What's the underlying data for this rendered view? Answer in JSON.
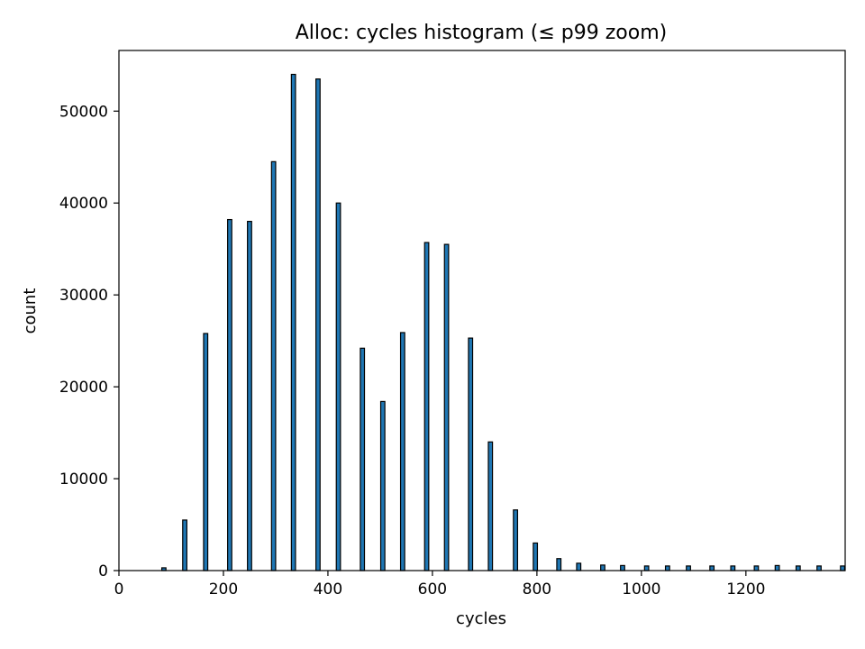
{
  "chart_data": {
    "type": "bar",
    "title": "Alloc: cycles histogram (≤ p99 zoom)",
    "xlabel": "cycles",
    "ylabel": "count",
    "xlim": [
      0,
      1390
    ],
    "ylim": [
      0,
      56600
    ],
    "xticks": [
      0,
      200,
      400,
      600,
      800,
      1000,
      1200
    ],
    "yticks": [
      0,
      10000,
      20000,
      30000,
      40000,
      50000
    ],
    "bar_color": "#1f77b4",
    "edge_color": "#000000",
    "grid": false,
    "x": [
      86,
      126,
      166,
      212,
      250,
      296,
      334,
      381,
      420,
      466,
      505,
      543,
      589,
      627,
      673,
      711,
      759,
      797,
      842,
      880,
      926,
      964,
      1010,
      1050,
      1090,
      1135,
      1175,
      1220,
      1260,
      1300,
      1340,
      1385
    ],
    "values": [
      300,
      5500,
      25800,
      38200,
      38000,
      44500,
      54000,
      53500,
      40000,
      24200,
      18400,
      25900,
      35700,
      35500,
      25300,
      14000,
      6600,
      3000,
      1300,
      800,
      600,
      550,
      500,
      500,
      500,
      500,
      500,
      500,
      550,
      500,
      500,
      500
    ]
  }
}
